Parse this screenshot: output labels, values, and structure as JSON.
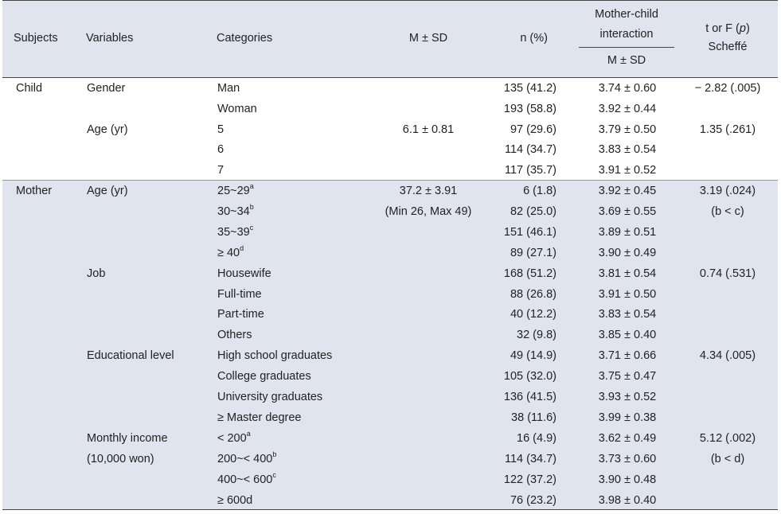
{
  "headers": {
    "subjects": "Subjects",
    "variables": "Variables",
    "categories": "Categories",
    "msd": "M ± SD",
    "n_pct": "n (%)",
    "mci_line1": "Mother-child",
    "mci_line2": "interaction",
    "mci_sub": "M ± SD",
    "tf_line1_pre": "t or F (",
    "tf_p": "p",
    "tf_line1_post": ")",
    "tf_line2": "Scheffé"
  },
  "child": {
    "subject": "Child",
    "rows": [
      {
        "variable": "Gender",
        "category": "Man",
        "sup": "",
        "msd": "",
        "n": "135 (41.2)",
        "mci": "3.74 ± 0.60",
        "tf": "− 2.82 (.005)"
      },
      {
        "variable": "",
        "category": "Woman",
        "sup": "",
        "msd": "",
        "n": "193 (58.8)",
        "mci": "3.92 ± 0.44",
        "tf": ""
      },
      {
        "variable": "Age (yr)",
        "category": "5",
        "sup": "",
        "msd": "6.1 ± 0.81",
        "n": "97 (29.6)",
        "mci": "3.79 ± 0.50",
        "tf": "1.35 (.261)"
      },
      {
        "variable": "",
        "category": "6",
        "sup": "",
        "msd": "",
        "n": "114 (34.7)",
        "mci": "3.83 ± 0.54",
        "tf": ""
      },
      {
        "variable": "",
        "category": "7",
        "sup": "",
        "msd": "",
        "n": "117 (35.7)",
        "mci": "3.91 ± 0.52",
        "tf": ""
      }
    ]
  },
  "mother": {
    "subject": "Mother",
    "rows": [
      {
        "variable": "Age (yr)",
        "category": "25~29",
        "sup": "a",
        "msd": "37.2 ± 3.91",
        "n": "6 (1.8)",
        "mci": "3.92 ± 0.45",
        "tf": "3.19 (.024)"
      },
      {
        "variable": "",
        "category": "30~34",
        "sup": "b",
        "msd": "(Min 26, Max 49)",
        "n": "82 (25.0)",
        "mci": "3.69 ± 0.55",
        "tf": "(b < c)"
      },
      {
        "variable": "",
        "category": "35~39",
        "sup": "c",
        "msd": "",
        "n": "151 (46.1)",
        "mci": "3.89 ± 0.51",
        "tf": ""
      },
      {
        "variable": "",
        "category": "≥ 40",
        "sup": "d",
        "msd": "",
        "n": "89 (27.1)",
        "mci": "3.90 ± 0.49",
        "tf": ""
      },
      {
        "variable": "Job",
        "category": "Housewife",
        "sup": "",
        "msd": "",
        "n": "168 (51.2)",
        "mci": "3.81 ± 0.54",
        "tf": "0.74 (.531)"
      },
      {
        "variable": "",
        "category": "Full-time",
        "sup": "",
        "msd": "",
        "n": "88 (26.8)",
        "mci": "3.91 ± 0.50",
        "tf": ""
      },
      {
        "variable": "",
        "category": "Part-time",
        "sup": "",
        "msd": "",
        "n": "40 (12.2)",
        "mci": "3.83 ± 0.54",
        "tf": ""
      },
      {
        "variable": "",
        "category": "Others",
        "sup": "",
        "msd": "",
        "n": "32 (9.8)",
        "mci": "3.85 ± 0.40",
        "tf": ""
      },
      {
        "variable": "Educational level",
        "category": "High school graduates",
        "sup": "",
        "msd": "",
        "n": "49 (14.9)",
        "mci": "3.71 ± 0.66",
        "tf": "4.34 (.005)"
      },
      {
        "variable": "",
        "category": "College graduates",
        "sup": "",
        "msd": "",
        "n": "105 (32.0)",
        "mci": "3.75 ± 0.47",
        "tf": ""
      },
      {
        "variable": "",
        "category": "University graduates",
        "sup": "",
        "msd": "",
        "n": "136 (41.5)",
        "mci": "3.93 ± 0.52",
        "tf": ""
      },
      {
        "variable": "",
        "category": "≥ Master degree",
        "sup": "",
        "msd": "",
        "n": "38 (11.6)",
        "mci": "3.99 ± 0.38",
        "tf": ""
      },
      {
        "variable": "Monthly income",
        "category": "< 200",
        "sup": "a",
        "msd": "",
        "n": "16 (4.9)",
        "mci": "3.62 ± 0.49",
        "tf": "5.12 (.002)"
      },
      {
        "variable": " (10,000 won)",
        "category": "200~< 400",
        "sup": "b",
        "msd": "",
        "n": "114 (34.7)",
        "mci": "3.73 ± 0.60",
        "tf": "(b < d)"
      },
      {
        "variable": "",
        "category": "400~< 600",
        "sup": "c",
        "msd": "",
        "n": "122 (37.2)",
        "mci": "3.90 ± 0.48",
        "tf": ""
      },
      {
        "variable": "",
        "category": "≥ 600d",
        "sup": "",
        "msd": "",
        "n": "76 (23.2)",
        "mci": "3.98 ± 0.40",
        "tf": ""
      }
    ]
  }
}
